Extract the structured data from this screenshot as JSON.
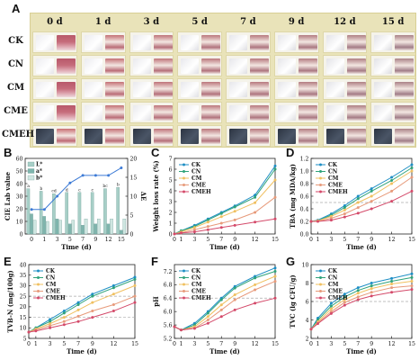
{
  "panels": {
    "A": "A",
    "B": "B",
    "C": "C",
    "D": "D",
    "E": "E",
    "F": "F",
    "G": "G"
  },
  "photo_grid": {
    "columns": [
      "0 d",
      "1 d",
      "3 d",
      "5 d",
      "7 d",
      "9 d",
      "12 d",
      "15 d"
    ],
    "rows": [
      "CK",
      "CN",
      "CM",
      "CME",
      "CMEH"
    ]
  },
  "chart_data": [
    {
      "id": "B",
      "type": "bar",
      "xlabel": "Time (d)",
      "ylabel": "CIE Lab value",
      "y2label": "ΔE",
      "categories": [
        "0",
        "1",
        "3",
        "5",
        "7",
        "9",
        "12",
        "15"
      ],
      "ylim": [
        0,
        60
      ],
      "y2lim": [
        0,
        20
      ],
      "yticks": [
        "0",
        "10",
        "20",
        "30",
        "40",
        "50",
        "60"
      ],
      "y2ticks": [
        "0",
        "5",
        "10",
        "15",
        "20"
      ],
      "legend": [
        "L*",
        "a*",
        "b*"
      ],
      "legend_position": "top-left",
      "colors": {
        "L": "#a7cfc7",
        "a": "#7fb5ad",
        "b": "#cfe6e1",
        "dE": "#3d7bd6"
      },
      "series": [
        {
          "name": "L*",
          "values": [
            36,
            34,
            32,
            33,
            33,
            33,
            36,
            37
          ]
        },
        {
          "name": "a*",
          "values": [
            16,
            14,
            12,
            8,
            7,
            8,
            8,
            3
          ]
        },
        {
          "name": "b*",
          "values": [
            11,
            10,
            11,
            11,
            12,
            12,
            12,
            12
          ]
        }
      ],
      "line": {
        "name": "ΔE",
        "values": [
          6.5,
          6.5,
          10,
          13.5,
          15.5,
          15.5,
          15.5,
          17.5
        ]
      },
      "bar_letters": [
        "a",
        "b",
        "cd",
        "d",
        "c",
        "c",
        "bc",
        "b"
      ]
    },
    {
      "id": "C",
      "type": "line",
      "xlabel": "Time (d)",
      "ylabel": "Weight loss rate (%)",
      "x": [
        0,
        1,
        3,
        5,
        7,
        9,
        12,
        15
      ],
      "xlim": [
        0,
        15
      ],
      "ylim": [
        0,
        7
      ],
      "yticks": [
        "0",
        "1",
        "2",
        "3",
        "4",
        "5",
        "6",
        "7"
      ],
      "legend_position": "top-left",
      "series": [
        {
          "name": "CK",
          "color": "#1d8ec4",
          "values": [
            0,
            0.3,
            0.8,
            1.4,
            2.0,
            2.6,
            3.6,
            6.3
          ]
        },
        {
          "name": "CN",
          "color": "#2fa37a",
          "values": [
            0,
            0.3,
            0.7,
            1.3,
            1.9,
            2.5,
            3.4,
            6.0
          ]
        },
        {
          "name": "CM",
          "color": "#f0c060",
          "values": [
            0,
            0.2,
            0.6,
            1.1,
            1.6,
            2.1,
            2.9,
            5.0
          ]
        },
        {
          "name": "CME",
          "color": "#e79a7a",
          "values": [
            0,
            0.1,
            0.4,
            0.7,
            1.0,
            1.3,
            2.0,
            3.4
          ]
        },
        {
          "name": "CMEH",
          "color": "#d44a6a",
          "values": [
            0,
            0.1,
            0.2,
            0.4,
            0.6,
            0.8,
            1.1,
            1.4
          ]
        }
      ]
    },
    {
      "id": "D",
      "type": "line",
      "xlabel": "Time (d)",
      "ylabel": "TBA (mg MDA/kg)",
      "x": [
        0,
        1,
        3,
        5,
        7,
        9,
        12,
        15
      ],
      "xlim": [
        0,
        15
      ],
      "ylim": [
        0.0,
        1.2
      ],
      "yticks": [
        "0.0",
        "0.2",
        "0.4",
        "0.6",
        "0.8",
        "1.0",
        "1.2"
      ],
      "threshold": 0.5,
      "legend_position": "top-left",
      "series": [
        {
          "name": "CK",
          "color": "#1d8ec4",
          "values": [
            0.2,
            0.22,
            0.32,
            0.45,
            0.6,
            0.72,
            0.9,
            1.1
          ]
        },
        {
          "name": "CN",
          "color": "#2fa37a",
          "values": [
            0.2,
            0.21,
            0.3,
            0.42,
            0.56,
            0.68,
            0.85,
            1.05
          ]
        },
        {
          "name": "CM",
          "color": "#f0c060",
          "values": [
            0.2,
            0.21,
            0.28,
            0.38,
            0.5,
            0.6,
            0.8,
            1.0
          ]
        },
        {
          "name": "CME",
          "color": "#e79a7a",
          "values": [
            0.2,
            0.2,
            0.25,
            0.32,
            0.42,
            0.52,
            0.68,
            0.9
          ]
        },
        {
          "name": "CMEH",
          "color": "#d44a6a",
          "values": [
            0.2,
            0.2,
            0.22,
            0.27,
            0.33,
            0.4,
            0.52,
            0.68
          ]
        }
      ]
    },
    {
      "id": "E",
      "type": "line",
      "xlabel": "Time (d)",
      "ylabel": "TVB-N (mg/100g)",
      "x": [
        0,
        1,
        3,
        5,
        7,
        9,
        12,
        15
      ],
      "xlim": [
        0,
        15
      ],
      "ylim": [
        5,
        40
      ],
      "yticks": [
        "5",
        "10",
        "15",
        "20",
        "25",
        "30",
        "35",
        "40"
      ],
      "thresholds": [
        15,
        25
      ],
      "legend_position": "top-left",
      "series": [
        {
          "name": "CK",
          "color": "#1d8ec4",
          "values": [
            8,
            10,
            14,
            18,
            22,
            26,
            30,
            34
          ]
        },
        {
          "name": "CN",
          "color": "#2fa37a",
          "values": [
            8,
            10,
            13,
            17,
            21,
            25,
            29,
            33
          ]
        },
        {
          "name": "CM",
          "color": "#f0c060",
          "values": [
            8,
            9.5,
            12,
            15,
            18.5,
            22,
            26,
            30
          ]
        },
        {
          "name": "CME",
          "color": "#e79a7a",
          "values": [
            8,
            9,
            11,
            13,
            15.5,
            18,
            21,
            25
          ]
        },
        {
          "name": "CMEH",
          "color": "#d44a6a",
          "values": [
            8,
            8.5,
            10,
            11.5,
            13,
            15,
            18,
            22
          ]
        }
      ]
    },
    {
      "id": "F",
      "type": "line",
      "xlabel": "Time (d)",
      "ylabel": "pH",
      "x": [
        0,
        1,
        3,
        5,
        7,
        9,
        12,
        15
      ],
      "xlim": [
        0,
        15
      ],
      "ylim": [
        5.2,
        7.4
      ],
      "yticks": [
        "5.2",
        "5.6",
        "6.0",
        "6.4",
        "6.8",
        "7.2"
      ],
      "threshold": 6.4,
      "legend_position": "top-left",
      "series": [
        {
          "name": "CK",
          "color": "#1d8ec4",
          "values": [
            5.55,
            5.45,
            5.65,
            6.0,
            6.4,
            6.75,
            7.05,
            7.3
          ]
        },
        {
          "name": "CN",
          "color": "#2fa37a",
          "values": [
            5.55,
            5.45,
            5.6,
            5.95,
            6.35,
            6.7,
            7.0,
            7.2
          ]
        },
        {
          "name": "CM",
          "color": "#f0c060",
          "values": [
            5.55,
            5.45,
            5.55,
            5.85,
            6.2,
            6.5,
            6.8,
            7.05
          ]
        },
        {
          "name": "CME",
          "color": "#e79a7a",
          "values": [
            5.55,
            5.45,
            5.5,
            5.75,
            6.05,
            6.35,
            6.65,
            6.9
          ]
        },
        {
          "name": "CMEH",
          "color": "#d44a6a",
          "values": [
            5.55,
            5.45,
            5.5,
            5.65,
            5.85,
            6.05,
            6.25,
            6.4
          ]
        }
      ]
    },
    {
      "id": "G",
      "type": "line",
      "xlabel": "Time (d)",
      "ylabel": "TVC (lg CFU/g)",
      "x": [
        0,
        1,
        3,
        5,
        7,
        9,
        12,
        15
      ],
      "xlim": [
        0,
        15
      ],
      "ylim": [
        2,
        10
      ],
      "yticks": [
        "2",
        "4",
        "6",
        "8",
        "10"
      ],
      "threshold": 6,
      "legend_position": "top-left",
      "series": [
        {
          "name": "CK",
          "color": "#1d8ec4",
          "values": [
            3.0,
            4.2,
            5.8,
            6.8,
            7.5,
            8.0,
            8.5,
            9.0
          ]
        },
        {
          "name": "CN",
          "color": "#2fa37a",
          "values": [
            3.0,
            4.0,
            5.5,
            6.5,
            7.2,
            7.7,
            8.2,
            8.6
          ]
        },
        {
          "name": "CM",
          "color": "#f0c060",
          "values": [
            3.0,
            3.8,
            5.2,
            6.2,
            6.9,
            7.4,
            7.9,
            8.2
          ]
        },
        {
          "name": "CME",
          "color": "#e79a7a",
          "values": [
            3.0,
            3.7,
            4.9,
            5.9,
            6.5,
            7.0,
            7.5,
            7.7
          ]
        },
        {
          "name": "CMEH",
          "color": "#d44a6a",
          "values": [
            3.0,
            3.6,
            4.7,
            5.6,
            6.2,
            6.6,
            7.0,
            7.3
          ]
        }
      ]
    }
  ]
}
